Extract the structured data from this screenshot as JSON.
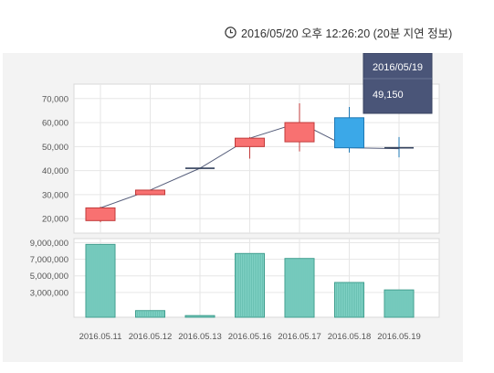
{
  "header": {
    "timestamp": "2016/05/20 오후 12:26:20 (20분 지연 정보)",
    "icon": "clock-icon"
  },
  "chart_data": {
    "type": "candlestick",
    "categories": [
      "2016.05.11",
      "2016.05.12",
      "2016.05.13",
      "2016.05.16",
      "2016.05.17",
      "2016.05.18",
      "2016.05.19"
    ],
    "ohlc": [
      {
        "open": 19200,
        "high": 25000,
        "low": 18500,
        "close": 24500
      },
      {
        "open": 30000,
        "high": 32000,
        "low": 29800,
        "close": 31900
      },
      {
        "open": 41000,
        "high": 41000,
        "low": 41000,
        "close": 41000
      },
      {
        "open": 50000,
        "high": 54000,
        "low": 45000,
        "close": 53500
      },
      {
        "open": 52000,
        "high": 68000,
        "low": 48000,
        "close": 60000
      },
      {
        "open": 62000,
        "high": 66500,
        "low": 47500,
        "close": 49500
      },
      {
        "open": 49500,
        "high": 54000,
        "low": 45500,
        "close": 49150
      }
    ],
    "line_values": [
      24500,
      31900,
      41000,
      53500,
      60000,
      49500,
      49150
    ],
    "volume": [
      8800000,
      800000,
      200000,
      7700000,
      7100000,
      4200000,
      3300000
    ],
    "price_axis": {
      "ticks": [
        "70,000",
        "60,000",
        "50,000",
        "40,000",
        "30,000",
        "20,000"
      ],
      "tick_values": [
        70000,
        60000,
        50000,
        40000,
        30000,
        20000
      ],
      "ylim": [
        14000,
        76000
      ]
    },
    "volume_axis": {
      "ticks": [
        "9,000,000",
        "7,000,000",
        "5,000,000",
        "3,000,000"
      ],
      "tick_values": [
        9000000,
        7000000,
        5000000,
        3000000
      ],
      "ylim": [
        0,
        9500000
      ]
    },
    "tooltip": {
      "date": "2016/05/19",
      "value": "49,150"
    },
    "colors": {
      "up": "#f87171",
      "up_border": "#c23b3b",
      "down": "#3ba8e8",
      "down_border": "#1f78b4",
      "line": "#555d7a",
      "volume_fill": "#7fd1c4",
      "volume_border": "#3d9c8c",
      "tooltip_bg": "#4a5578"
    },
    "grid": true
  }
}
